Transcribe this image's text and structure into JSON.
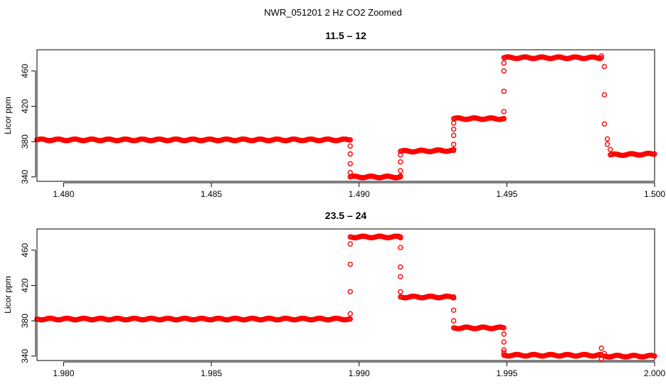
{
  "title": "NWR_051201  2 Hz CO2 Zoomed",
  "colors": {
    "points": "#ff0000",
    "axes": "#000000",
    "background": "#ffffff"
  },
  "chart_data": [
    {
      "type": "scatter",
      "title": "11.5 – 12",
      "xlabel": "",
      "ylabel": "Licor ppm",
      "xlim": [
        1.4791,
        1.5
      ],
      "ylim": [
        335,
        484
      ],
      "xticks": [
        1.48,
        1.485,
        1.49,
        1.495,
        1.5
      ],
      "xtick_labels": [
        "1.480",
        "1.485",
        "1.490",
        "1.495",
        "1.500"
      ],
      "yticks": [
        340,
        380,
        420,
        460
      ],
      "ytick_labels": [
        "340",
        "380",
        "420",
        "460"
      ],
      "grid": false,
      "marker": "open-circle",
      "series": [
        {
          "points": [
            [
              1.4791,
              382
            ],
            [
              1.4897,
              382
            ],
            [
              1.4897,
              382
            ],
            [
              1.4897,
              375
            ],
            [
              1.4897,
              366
            ],
            [
              1.4897,
              355
            ],
            [
              1.4897,
              345
            ],
            [
              1.4897,
              340
            ],
            [
              1.4914,
              340
            ],
            [
              1.4914,
              341
            ],
            [
              1.4914,
              347
            ],
            [
              1.4914,
              357
            ],
            [
              1.4914,
              365
            ],
            [
              1.4914,
              369
            ],
            [
              1.4932,
              370
            ],
            [
              1.4932,
              371
            ],
            [
              1.4932,
              377
            ],
            [
              1.4932,
              387
            ],
            [
              1.4932,
              394
            ],
            [
              1.4932,
              401
            ],
            [
              1.4932,
              406
            ],
            [
              1.4949,
              406
            ],
            [
              1.4949,
              406
            ],
            [
              1.4949,
              414
            ],
            [
              1.4949,
              437
            ],
            [
              1.4949,
              460
            ],
            [
              1.4949,
              469
            ],
            [
              1.4949,
              475
            ],
            [
              1.4982,
              475
            ],
            [
              1.4982,
              477
            ],
            [
              1.4983,
              465
            ],
            [
              1.4983,
              433
            ],
            [
              1.4983,
              400
            ],
            [
              1.4984,
              383
            ],
            [
              1.4984,
              377
            ],
            [
              1.4985,
              371
            ],
            [
              1.4985,
              365
            ],
            [
              1.5,
              366
            ]
          ]
        }
      ]
    },
    {
      "type": "scatter",
      "title": "23.5 – 24",
      "xlabel": "",
      "ylabel": "Licor ppm",
      "xlim": [
        1.9791,
        2.0
      ],
      "ylim": [
        335,
        484
      ],
      "xticks": [
        1.98,
        1.985,
        1.99,
        1.995,
        2.0
      ],
      "xtick_labels": [
        "1.980",
        "1.985",
        "1.990",
        "1.995",
        "2.000"
      ],
      "yticks": [
        340,
        380,
        420,
        460
      ],
      "ytick_labels": [
        "340",
        "380",
        "420",
        "460"
      ],
      "grid": false,
      "marker": "open-circle",
      "series": [
        {
          "points": [
            [
              1.9791,
              382
            ],
            [
              1.9897,
              382
            ],
            [
              1.9897,
              382
            ],
            [
              1.9897,
              388
            ],
            [
              1.9897,
              413
            ],
            [
              1.9897,
              444
            ],
            [
              1.9897,
              467
            ],
            [
              1.9897,
              475
            ],
            [
              1.9914,
              475
            ],
            [
              1.9914,
              474
            ],
            [
              1.9914,
              463
            ],
            [
              1.9914,
              441
            ],
            [
              1.9914,
              430
            ],
            [
              1.9914,
              413
            ],
            [
              1.9914,
              407
            ],
            [
              1.9932,
              407
            ],
            [
              1.9932,
              406
            ],
            [
              1.9932,
              392
            ],
            [
              1.9932,
              380
            ],
            [
              1.9932,
              372
            ],
            [
              1.9949,
              372
            ],
            [
              1.9949,
              365
            ],
            [
              1.9949,
              356
            ],
            [
              1.9949,
              347
            ],
            [
              1.9949,
              344
            ],
            [
              1.9949,
              341
            ],
            [
              1.9982,
              341
            ],
            [
              1.9982,
              349
            ],
            [
              1.9982,
              337
            ],
            [
              1.9983,
              343
            ],
            [
              1.9983,
              340
            ],
            [
              2.0,
              340
            ]
          ]
        }
      ]
    }
  ]
}
